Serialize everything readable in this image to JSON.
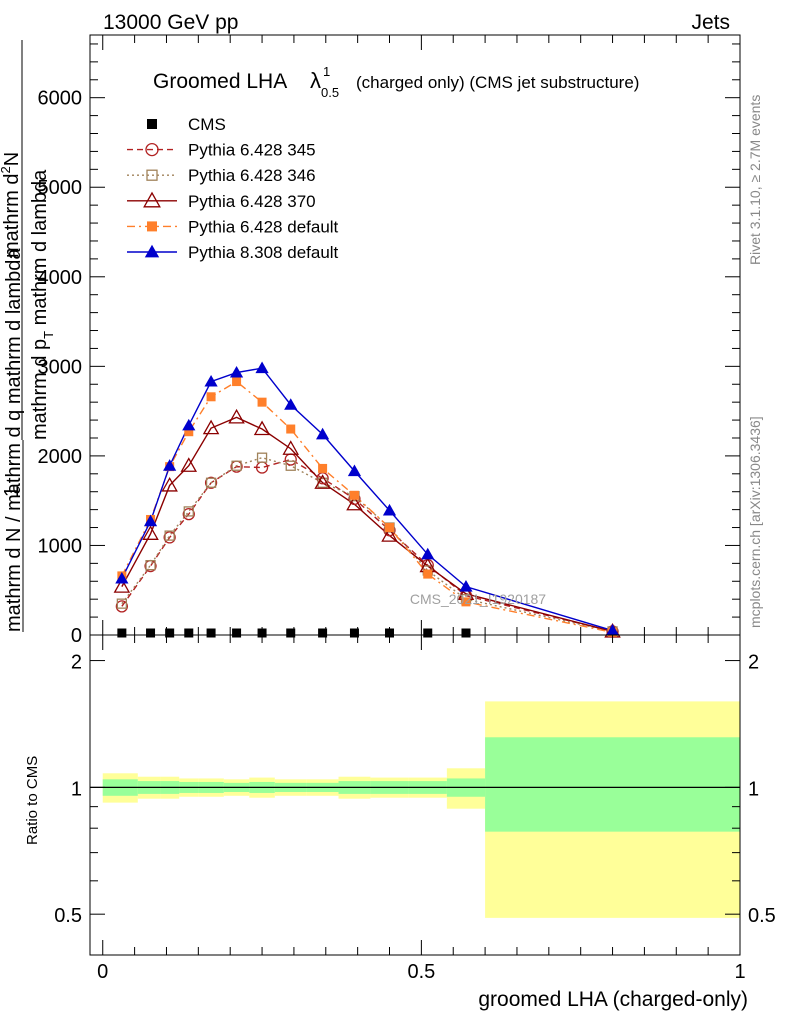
{
  "header": {
    "left": "13000 GeV pp",
    "right": "Jets"
  },
  "side_labels": {
    "rivet": "Rivet 3.1.10, ≥ 2.7M events",
    "mcplots": "mcplots.cern.ch [arXiv:1306.3436]"
  },
  "chart_data": [
    {
      "type": "line",
      "title_main": "Groomed LHA",
      "title_symbol": "λ",
      "title_sup": "1",
      "title_sub": "0.5",
      "title_rest": "(charged only) (CMS jet substructure)",
      "ylabel_top_num": "mathrm d",
      "ylabel_top_num_sup": "2",
      "ylabel_top_num_end": "N",
      "ylabel_top_den": "mathrm d p",
      "ylabel_top_den_sub": "T",
      "ylabel_top_den_end": " mathrm d lambda",
      "ylabel_bottom_num": "1",
      "ylabel_bottom_den": "mathrm d N / mathrm d q mathrm d lambda",
      "watermark": "CMS_2021_I1920187",
      "xlim": [
        -0.02,
        1.0
      ],
      "ylim": [
        0,
        6700
      ],
      "yticks": [
        0,
        1000,
        2000,
        3000,
        4000,
        5000,
        6000
      ],
      "ytick_labels": [
        "0",
        "1000",
        "2000",
        "3000",
        "4000",
        "5000",
        "6000"
      ],
      "x": [
        0.03,
        0.075,
        0.105,
        0.135,
        0.17,
        0.21,
        0.25,
        0.295,
        0.345,
        0.395,
        0.45,
        0.51,
        0.57,
        0.8
      ],
      "series": [
        {
          "name": "CMS",
          "marker": "square-filled",
          "color": "#000000",
          "line": "none",
          "values": [
            0,
            0,
            0,
            0,
            0,
            0,
            0,
            0,
            0,
            0,
            0,
            0,
            0,
            null
          ]
        },
        {
          "name": "Pythia 6.428 345",
          "marker": "circle-open",
          "color": "#b22222",
          "line": "dashed",
          "values": [
            320,
            770,
            1090,
            1350,
            1700,
            1880,
            1870,
            1960,
            1750,
            1520,
            1170,
            780,
            440,
            40
          ]
        },
        {
          "name": "Pythia 6.428 346",
          "marker": "square-open",
          "color": "#a0825a",
          "line": "dotted",
          "values": [
            350,
            780,
            1110,
            1380,
            1700,
            1890,
            1980,
            1890,
            1700,
            1550,
            1200,
            720,
            400,
            40
          ]
        },
        {
          "name": "Pythia 6.428 370",
          "marker": "triangle-open",
          "color": "#8b0000",
          "line": "solid",
          "values": [
            540,
            1130,
            1670,
            1890,
            2310,
            2430,
            2300,
            2080,
            1700,
            1460,
            1110,
            770,
            460,
            40
          ]
        },
        {
          "name": "Pythia 6.428 default",
          "marker": "square-filled",
          "color": "#ff7f2a",
          "line": "dashdot",
          "values": [
            660,
            1290,
            1880,
            2270,
            2660,
            2830,
            2600,
            2300,
            1860,
            1560,
            1200,
            680,
            370,
            30
          ]
        },
        {
          "name": "Pythia 8.308 default",
          "marker": "triangle-filled",
          "color": "#0000cc",
          "line": "solid",
          "values": [
            630,
            1270,
            1890,
            2340,
            2830,
            2930,
            2980,
            2570,
            2240,
            1830,
            1390,
            900,
            540,
            50
          ]
        }
      ]
    },
    {
      "type": "area",
      "ylabel": "Ratio to CMS",
      "xlabel": "groomed LHA (charged-only)",
      "xlim": [
        -0.02,
        1.0
      ],
      "xticks": [
        0,
        0.5,
        1
      ],
      "xtick_labels": [
        "0",
        "0.5",
        "1"
      ],
      "ylim": [
        0.4,
        2.3
      ],
      "yticks": [
        0.5,
        1,
        2
      ],
      "ytick_labels": [
        "0.5",
        "1",
        "2"
      ],
      "reference": 1,
      "bin_edges": [
        0.0,
        0.055,
        0.09,
        0.12,
        0.15,
        0.19,
        0.23,
        0.27,
        0.32,
        0.37,
        0.42,
        0.48,
        0.54,
        0.6,
        1.0
      ],
      "band_inner": {
        "color": "#99ff99",
        "low": [
          0.955,
          0.965,
          0.965,
          0.97,
          0.97,
          0.975,
          0.97,
          0.975,
          0.975,
          0.965,
          0.965,
          0.965,
          0.95,
          0.785
        ],
        "high": [
          1.045,
          1.035,
          1.035,
          1.03,
          1.03,
          1.025,
          1.03,
          1.025,
          1.025,
          1.035,
          1.035,
          1.035,
          1.05,
          1.315
        ]
      },
      "band_outer": {
        "color": "#ffff99",
        "low": [
          0.92,
          0.94,
          0.94,
          0.95,
          0.95,
          0.955,
          0.945,
          0.955,
          0.955,
          0.94,
          0.945,
          0.945,
          0.89,
          0.49
        ],
        "high": [
          1.08,
          1.06,
          1.06,
          1.05,
          1.05,
          1.045,
          1.055,
          1.045,
          1.045,
          1.06,
          1.055,
          1.055,
          1.11,
          1.6
        ]
      }
    }
  ]
}
